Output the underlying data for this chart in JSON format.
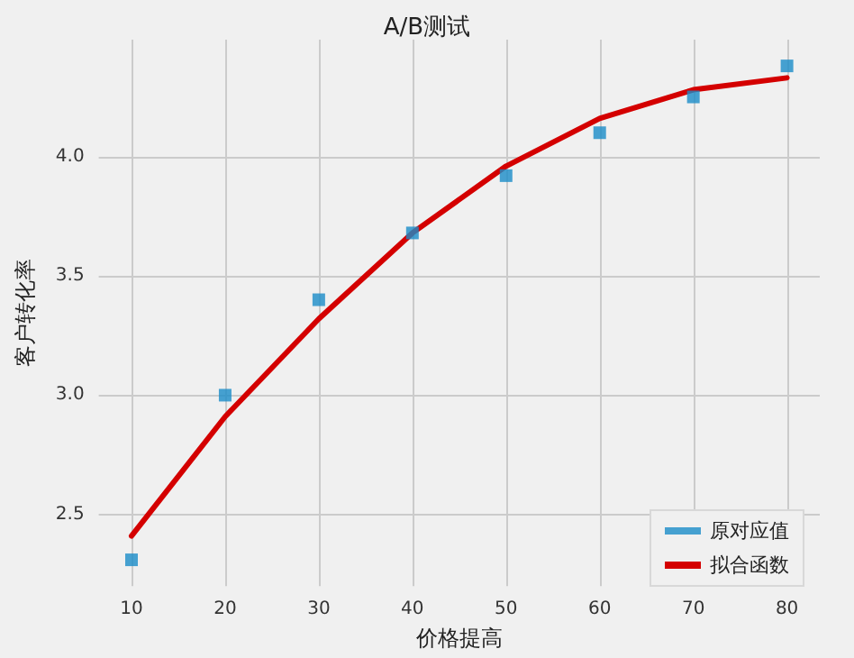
{
  "chart_data": {
    "type": "line",
    "title": "A/B测试",
    "xlabel": "价格提高",
    "ylabel": "客户转化率",
    "x": [
      10,
      20,
      30,
      40,
      50,
      60,
      70,
      80
    ],
    "series": [
      {
        "name": "原对应值",
        "type": "scatter",
        "marker": "square",
        "color": "#1a8cc8",
        "values": [
          2.31,
          3.0,
          3.4,
          3.68,
          3.92,
          4.1,
          4.25,
          4.38
        ]
      },
      {
        "name": "拟合函数",
        "marker": "none",
        "line_style": "solid",
        "color": "#d40000",
        "values": [
          2.41,
          2.91,
          3.32,
          3.68,
          3.96,
          4.16,
          4.28,
          4.33
        ]
      }
    ],
    "xlim": [
      6.5,
      83.5
    ],
    "ylim": [
      2.2,
      4.49
    ],
    "xticks": [
      10,
      20,
      30,
      40,
      50,
      60,
      70,
      80
    ],
    "yticks": [
      2.5,
      {
        "value": 3,
        "label": "3.0"
      },
      3.5,
      {
        "value": 4,
        "label": "4.0"
      }
    ],
    "grid": true,
    "legend": "bottom right"
  }
}
